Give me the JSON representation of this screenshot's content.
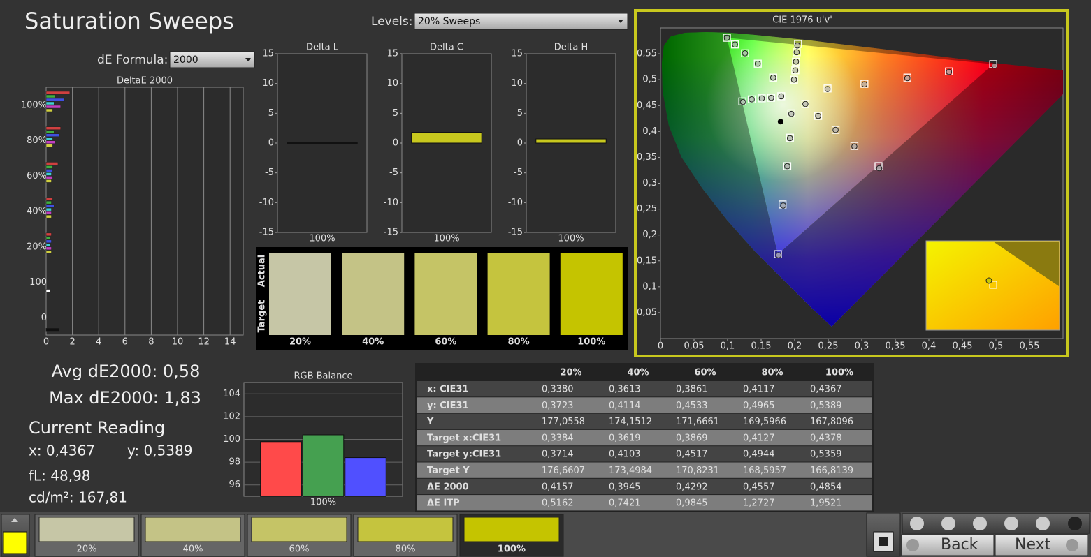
{
  "title": "Saturation Sweeps",
  "levels": {
    "label": "Levels:",
    "value": "20% Sweeps"
  },
  "de_formula": {
    "label": "dE Formula:",
    "value": "2000"
  },
  "chart_data": [
    {
      "type": "hbar",
      "title": "DeltaE 2000",
      "categories": [
        "100%",
        "80%",
        "60%",
        "40%",
        "20%",
        "100",
        "0"
      ],
      "xlim": [
        0,
        15
      ],
      "xticks": [
        0,
        2,
        4,
        6,
        8,
        10,
        12,
        14
      ],
      "grid": true,
      "series": [
        {
          "color": "#d04040",
          "values": [
            1.8,
            1.1,
            0.9,
            0.5,
            0.4,
            null,
            null
          ]
        },
        {
          "color": "#40b040",
          "values": [
            0.7,
            0.6,
            0.5,
            0.4,
            0.3,
            null,
            null
          ]
        },
        {
          "color": "#4050e0",
          "values": [
            1.4,
            1.0,
            0.5,
            0.6,
            0.4,
            null,
            null
          ]
        },
        {
          "color": "#40d0d0",
          "values": [
            0.6,
            0.5,
            0.4,
            0.4,
            0.3,
            null,
            null
          ]
        },
        {
          "color": "#c040c0",
          "values": [
            1.1,
            0.7,
            0.5,
            0.4,
            0.4,
            null,
            null
          ]
        },
        {
          "color": "#d0d040",
          "values": [
            0.5,
            0.5,
            0.4,
            0.4,
            0.4,
            null,
            null
          ]
        },
        {
          "color": "#ffffff",
          "values": [
            null,
            null,
            null,
            null,
            null,
            0.3,
            null
          ]
        },
        {
          "color": "#111111",
          "values": [
            null,
            null,
            null,
            null,
            null,
            null,
            1.0
          ]
        }
      ]
    },
    {
      "type": "bar",
      "title": "Delta L",
      "categories": [
        "100%"
      ],
      "values": [
        0.1
      ],
      "color": "#111111",
      "ylim": [
        -15,
        15
      ],
      "yticks": [
        -15,
        -10,
        -5,
        0,
        5,
        10,
        15
      ],
      "grid": false
    },
    {
      "type": "bar",
      "title": "Delta C",
      "categories": [
        "100%"
      ],
      "values": [
        1.8
      ],
      "color": "#c8c81e",
      "ylim": [
        -15,
        15
      ],
      "yticks": [
        -15,
        -10,
        -5,
        0,
        5,
        10,
        15
      ],
      "grid": false
    },
    {
      "type": "bar",
      "title": "Delta H",
      "categories": [
        "100%"
      ],
      "values": [
        0.7
      ],
      "color": "#c8c81e",
      "ylim": [
        -15,
        15
      ],
      "yticks": [
        -15,
        -10,
        -5,
        0,
        5,
        10,
        15
      ],
      "grid": false
    },
    {
      "type": "scatter",
      "title": "CIE 1976 u'v'",
      "xlim": [
        0,
        0.6
      ],
      "ylim": [
        0,
        0.6
      ],
      "xticks": [
        0,
        {
          "value": 0.05,
          "label": "0,05"
        },
        {
          "value": 0.1,
          "label": "0,1"
        },
        {
          "value": 0.15,
          "label": "0,15"
        },
        {
          "value": 0.2,
          "label": "0,2"
        },
        {
          "value": 0.25,
          "label": "0,25"
        },
        {
          "value": 0.3,
          "label": "0,3"
        },
        {
          "value": 0.35,
          "label": "0,35"
        },
        {
          "value": 0.4,
          "label": "0,4"
        },
        {
          "value": 0.45,
          "label": "0,45"
        },
        {
          "value": 0.5,
          "label": "0,5"
        },
        {
          "value": 0.55,
          "label": "0,55"
        }
      ],
      "yticks": [
        {
          "value": 0.05,
          "label": "0,05"
        },
        {
          "value": 0.1,
          "label": "0,1"
        },
        {
          "value": 0.15,
          "label": "0,15"
        },
        {
          "value": 0.2,
          "label": "0,2"
        },
        {
          "value": 0.25,
          "label": "0,25"
        },
        {
          "value": 0.3,
          "label": "0,3"
        },
        {
          "value": 0.35,
          "label": "0,35"
        },
        {
          "value": 0.4,
          "label": "0,4"
        },
        {
          "value": 0.45,
          "label": "0,45"
        },
        {
          "value": 0.5,
          "label": "0,5"
        },
        {
          "value": 0.55,
          "label": "0,55"
        }
      ],
      "series": [
        {
          "marker": "square",
          "color": "#ffffff",
          "x": [
            0.249,
            0.304,
            0.368,
            0.43,
            0.496,
            0.168,
            0.145,
            0.126,
            0.111,
            0.099,
            0.195,
            0.193,
            0.189,
            0.182,
            0.175,
            0.18,
            0.165,
            0.151,
            0.136,
            0.122,
            0.216,
            0.235,
            0.261,
            0.289,
            0.325,
            0.199,
            0.201,
            0.202,
            0.203,
            0.205
          ],
          "y": [
            0.483,
            0.492,
            0.504,
            0.516,
            0.53,
            0.504,
            0.531,
            0.551,
            0.568,
            0.581,
            0.435,
            0.388,
            0.333,
            0.259,
            0.163,
            0.468,
            0.465,
            0.464,
            0.462,
            0.458,
            0.453,
            0.43,
            0.403,
            0.372,
            0.333,
            0.5,
            0.518,
            0.535,
            0.553,
            0.569
          ]
        },
        {
          "marker": "circle",
          "color": "#b8b8b8",
          "x": [
            0.249,
            0.304,
            0.368,
            0.43,
            0.498,
            0.168,
            0.145,
            0.126,
            0.111,
            0.099,
            0.195,
            0.193,
            0.189,
            0.183,
            0.176,
            0.18,
            0.165,
            0.151,
            0.136,
            0.123,
            0.216,
            0.235,
            0.261,
            0.289,
            0.326,
            0.199,
            0.201,
            0.202,
            0.203,
            0.204
          ],
          "y": [
            0.482,
            0.491,
            0.503,
            0.515,
            0.527,
            0.504,
            0.531,
            0.551,
            0.568,
            0.581,
            0.434,
            0.387,
            0.333,
            0.257,
            0.161,
            0.468,
            0.465,
            0.464,
            0.462,
            0.457,
            0.453,
            0.43,
            0.403,
            0.371,
            0.329,
            0.5,
            0.518,
            0.535,
            0.553,
            0.566
          ]
        },
        {
          "marker": "dot",
          "color": "#000000",
          "x": [
            0.179
          ],
          "y": [
            0.419
          ]
        }
      ]
    },
    {
      "type": "bar",
      "title": "RGB Balance",
      "categories": [
        "100%"
      ],
      "ylim": [
        95,
        105
      ],
      "yticks": [
        96,
        98,
        100,
        102,
        104
      ],
      "grid": true,
      "series": [
        {
          "color": "#ff4a4a",
          "values": [
            99.8
          ]
        },
        {
          "color": "#45a050",
          "values": [
            100.4
          ]
        },
        {
          "color": "#5050ff",
          "values": [
            98.4
          ]
        }
      ]
    }
  ],
  "swatches": {
    "row_labels": [
      "Actual",
      "Target"
    ],
    "categories": [
      "20%",
      "40%",
      "60%",
      "80%",
      "100%"
    ],
    "colors": [
      "#c6c6a6",
      "#c4c386",
      "#c5c466",
      "#c5c43e",
      "#c5c400"
    ]
  },
  "stats": {
    "avg": "Avg dE2000: 0,58",
    "max": "Max dE2000: 1,83",
    "reading_title": "Current Reading",
    "x": "x: 0,4367",
    "y": "y: 0,5389",
    "fl": "fL: 48,98",
    "cdm2": "cd/m²: 167,81"
  },
  "table": {
    "columns": [
      "20%",
      "40%",
      "60%",
      "80%",
      "100%"
    ],
    "rows": [
      {
        "label": "x: CIE31",
        "values": [
          "0,3380",
          "0,3613",
          "0,3861",
          "0,4117",
          "0,4367"
        ]
      },
      {
        "label": "y: CIE31",
        "values": [
          "0,3723",
          "0,4114",
          "0,4533",
          "0,4965",
          "0,5389"
        ]
      },
      {
        "label": "Y",
        "values": [
          "177,0558",
          "174,1512",
          "171,6661",
          "169,5966",
          "167,8096"
        ]
      },
      {
        "label": "Target x:CIE31",
        "values": [
          "0,3384",
          "0,3619",
          "0,3869",
          "0,4127",
          "0,4378"
        ]
      },
      {
        "label": "Target y:CIE31",
        "values": [
          "0,3714",
          "0,4103",
          "0,4517",
          "0,4944",
          "0,5359"
        ]
      },
      {
        "label": "Target Y",
        "values": [
          "176,6607",
          "173,4984",
          "170,8231",
          "168,5957",
          "166,8139"
        ]
      },
      {
        "label": "ΔE 2000",
        "values": [
          "0,4157",
          "0,3945",
          "0,4292",
          "0,4557",
          "0,4854"
        ]
      },
      {
        "label": "ΔE ITP",
        "values": [
          "0,5162",
          "0,7421",
          "0,9845",
          "1,2727",
          "1,9521"
        ]
      }
    ]
  },
  "bottom_bar": {
    "back": "Back",
    "next": "Next"
  }
}
